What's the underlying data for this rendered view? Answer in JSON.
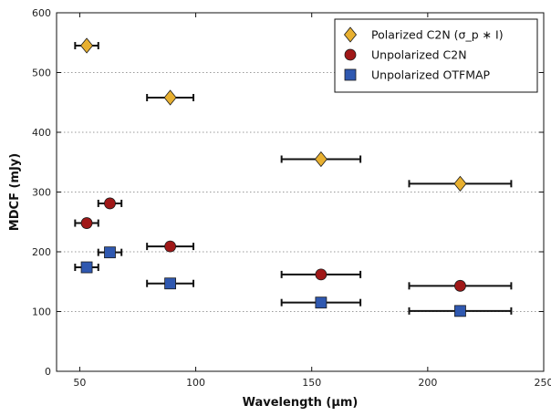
{
  "chart_data": {
    "type": "scatter",
    "xlabel": "Wavelength (µm)",
    "ylabel": "MDCF (mJy)",
    "xlim": [
      40,
      250
    ],
    "ylim": [
      0,
      600
    ],
    "xticks": [
      50,
      100,
      150,
      200,
      250
    ],
    "yticks": [
      0,
      100,
      200,
      300,
      400,
      500,
      600
    ],
    "grid": "horizontal dotted",
    "legend_position": "top-right",
    "series": [
      {
        "name": "Polarized C2N (σ_p ∗ I)",
        "marker": "diamond",
        "color": "#e8b030",
        "points": [
          {
            "x": 53,
            "y": 545,
            "xerr": [
              48,
              58
            ]
          },
          {
            "x": 89,
            "y": 458,
            "xerr": [
              79,
              99
            ]
          },
          {
            "x": 154,
            "y": 355,
            "xerr": [
              137,
              171
            ]
          },
          {
            "x": 214,
            "y": 314,
            "xerr": [
              192,
              236
            ]
          }
        ]
      },
      {
        "name": "Unpolarized C2N",
        "marker": "circle",
        "color": "#a01818",
        "points": [
          {
            "x": 53,
            "y": 248,
            "xerr": [
              48,
              58
            ]
          },
          {
            "x": 63,
            "y": 281,
            "xerr": [
              58,
              68
            ]
          },
          {
            "x": 89,
            "y": 209,
            "xerr": [
              79,
              99
            ]
          },
          {
            "x": 154,
            "y": 162,
            "xerr": [
              137,
              171
            ]
          },
          {
            "x": 214,
            "y": 143,
            "xerr": [
              192,
              236
            ]
          }
        ]
      },
      {
        "name": "Unpolarized OTFMAP",
        "marker": "square",
        "color": "#2f58b0",
        "points": [
          {
            "x": 53,
            "y": 174,
            "xerr": [
              48,
              58
            ]
          },
          {
            "x": 63,
            "y": 199,
            "xerr": [
              58,
              68
            ]
          },
          {
            "x": 89,
            "y": 147,
            "xerr": [
              79,
              99
            ]
          },
          {
            "x": 154,
            "y": 115,
            "xerr": [
              137,
              171
            ]
          },
          {
            "x": 214,
            "y": 101,
            "xerr": [
              192,
              236
            ]
          }
        ]
      }
    ]
  }
}
